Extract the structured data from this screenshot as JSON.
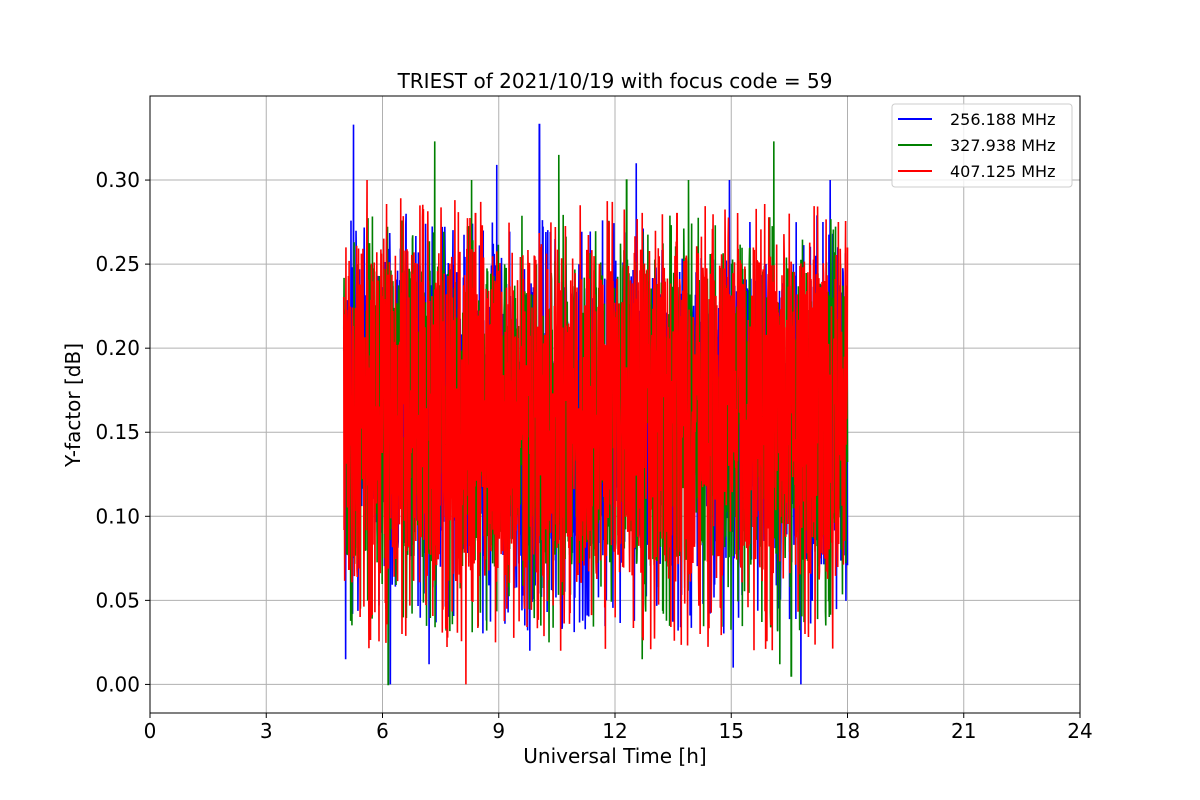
{
  "chart_data": {
    "type": "line",
    "title": "TRIEST of 2021/10/19 with focus code = 59",
    "xlabel": "Universal Time [h]",
    "ylabel": "Y-factor [dB]",
    "xlim": [
      0,
      24
    ],
    "ylim": [
      -0.017,
      0.35
    ],
    "xticks": [
      0,
      3,
      6,
      9,
      12,
      15,
      18,
      21,
      24
    ],
    "xtick_labels": [
      "0",
      "3",
      "6",
      "9",
      "12",
      "15",
      "18",
      "21",
      "24"
    ],
    "yticks": [
      0.0,
      0.05,
      0.1,
      0.15,
      0.2,
      0.25,
      0.3
    ],
    "ytick_labels": [
      "0.00",
      "0.05",
      "0.10",
      "0.15",
      "0.20",
      "0.25",
      "0.30"
    ],
    "grid": true,
    "legend_position": "top-right",
    "series": [
      {
        "name": "256.188 MHz",
        "color": "#0000ff",
        "x_range": [
          5.0,
          18.0
        ],
        "typical_range": [
          0.07,
          0.25
        ],
        "min": 0.0,
        "max": 0.333,
        "peaks": [
          [
            5.25,
            0.333
          ],
          [
            10.05,
            0.333
          ],
          [
            8.95,
            0.309
          ],
          [
            12.55,
            0.31
          ],
          [
            14.95,
            0.3
          ],
          [
            17.55,
            0.3
          ]
        ],
        "troughs": [
          [
            5.05,
            0.015
          ],
          [
            6.2,
            0.0
          ],
          [
            16.8,
            0.0
          ],
          [
            7.2,
            0.012
          ],
          [
            15.05,
            0.01
          ],
          [
            9.8,
            0.02
          ]
        ]
      },
      {
        "name": "327.938 MHz",
        "color": "#008000",
        "x_range": [
          5.0,
          18.0
        ],
        "typical_range": [
          0.07,
          0.25
        ],
        "min": 0.0,
        "max": 0.323,
        "peaks": [
          [
            7.35,
            0.323
          ],
          [
            16.1,
            0.323
          ],
          [
            10.55,
            0.315
          ],
          [
            8.3,
            0.3
          ],
          [
            12.3,
            0.3
          ],
          [
            13.9,
            0.3
          ]
        ],
        "troughs": [
          [
            6.15,
            0.0
          ],
          [
            16.55,
            0.005
          ],
          [
            12.7,
            0.015
          ],
          [
            16.25,
            0.012
          ],
          [
            10.3,
            0.025
          ]
        ]
      },
      {
        "name": "407.125 MHz",
        "color": "#ff0000",
        "x_range": [
          5.0,
          18.0
        ],
        "typical_range": [
          0.06,
          0.26
        ],
        "min": 0.0,
        "max": 0.3,
        "peaks": [
          [
            5.6,
            0.3
          ],
          [
            8.4,
            0.28
          ],
          [
            11.1,
            0.285
          ],
          [
            13.6,
            0.28
          ],
          [
            16.5,
            0.28
          ]
        ],
        "troughs": [
          [
            8.15,
            0.0
          ],
          [
            10.6,
            0.02
          ],
          [
            6.5,
            0.03
          ],
          [
            14.2,
            0.03
          ],
          [
            16.9,
            0.03
          ]
        ]
      }
    ]
  }
}
